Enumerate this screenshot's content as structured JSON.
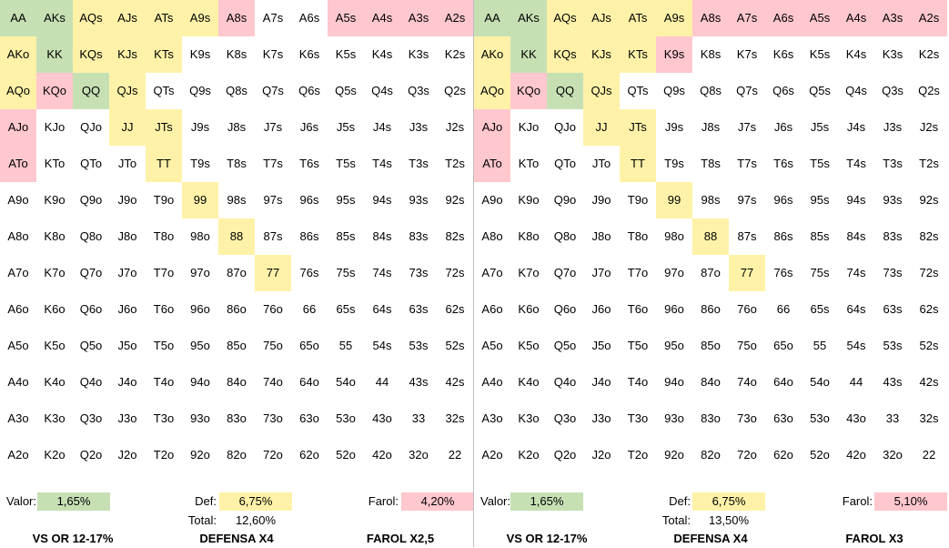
{
  "panels": [
    {
      "grid": [
        [
          "AA|g",
          "AKs|g",
          "AQs|y",
          "AJs|y",
          "ATs|y",
          "A9s|y",
          "A8s|r",
          "A7s|",
          "A6s|",
          "A5s|r",
          "A4s|r",
          "A3s|r",
          "A2s|r"
        ],
        [
          "AKo|y",
          "KK|g",
          "KQs|y",
          "KJs|y",
          "KTs|y",
          "K9s|",
          "K8s|",
          "K7s|",
          "K6s|",
          "K5s|",
          "K4s|",
          "K3s|",
          "K2s|"
        ],
        [
          "AQo|y",
          "KQo|r",
          "QQ|g",
          "QJs|y",
          "QTs|",
          "Q9s|",
          "Q8s|",
          "Q7s|",
          "Q6s|",
          "Q5s|",
          "Q4s|",
          "Q3s|",
          "Q2s|"
        ],
        [
          "AJo|r",
          "KJo|",
          "QJo|",
          "JJ|y",
          "JTs|y",
          "J9s|",
          "J8s|",
          "J7s|",
          "J6s|",
          "J5s|",
          "J4s|",
          "J3s|",
          "J2s|"
        ],
        [
          "ATo|r",
          "KTo|",
          "QTo|",
          "JTo|",
          "TT|y",
          "T9s|",
          "T8s|",
          "T7s|",
          "T6s|",
          "T5s|",
          "T4s|",
          "T3s|",
          "T2s|"
        ],
        [
          "A9o|",
          "K9o|",
          "Q9o|",
          "J9o|",
          "T9o|",
          "99|y",
          "98s|",
          "97s|",
          "96s|",
          "95s|",
          "94s|",
          "93s|",
          "92s|"
        ],
        [
          "A8o|",
          "K8o|",
          "Q8o|",
          "J8o|",
          "T8o|",
          "98o|",
          "88|y",
          "87s|",
          "86s|",
          "85s|",
          "84s|",
          "83s|",
          "82s|"
        ],
        [
          "A7o|",
          "K7o|",
          "Q7o|",
          "J7o|",
          "T7o|",
          "97o|",
          "87o|",
          "77|y",
          "76s|",
          "75s|",
          "74s|",
          "73s|",
          "72s|"
        ],
        [
          "A6o|",
          "K6o|",
          "Q6o|",
          "J6o|",
          "T6o|",
          "96o|",
          "86o|",
          "76o|",
          "66|",
          "65s|",
          "64s|",
          "63s|",
          "62s|"
        ],
        [
          "A5o|",
          "K5o|",
          "Q5o|",
          "J5o|",
          "T5o|",
          "95o|",
          "85o|",
          "75o|",
          "65o|",
          "55|",
          "54s|",
          "53s|",
          "52s|"
        ],
        [
          "A4o|",
          "K4o|",
          "Q4o|",
          "J4o|",
          "T4o|",
          "94o|",
          "84o|",
          "74o|",
          "64o|",
          "54o|",
          "44|",
          "43s|",
          "42s|"
        ],
        [
          "A3o|",
          "K3o|",
          "Q3o|",
          "J3o|",
          "T3o|",
          "93o|",
          "83o|",
          "73o|",
          "63o|",
          "53o|",
          "43o|",
          "33|",
          "32s|"
        ],
        [
          "A2o|",
          "K2o|",
          "Q2o|",
          "J2o|",
          "T2o|",
          "92o|",
          "82o|",
          "72o|",
          "62o|",
          "52o|",
          "42o|",
          "32o|",
          "22|"
        ]
      ],
      "valor_label": "Valor:",
      "valor_value": "1,65%",
      "def_label": "Def:",
      "def_value": "6,75%",
      "total_label": "Total:",
      "total_value": "12,60%",
      "farol_label": "Farol:",
      "farol_value": "4,20%",
      "footer_left": "VS OR 12-17%",
      "footer_mid": "DEFENSA X4",
      "footer_right": "FAROL X2,5"
    },
    {
      "grid": [
        [
          "AA|g",
          "AKs|g",
          "AQs|y",
          "AJs|y",
          "ATs|y",
          "A9s|y",
          "A8s|r",
          "A7s|r",
          "A6s|r",
          "A5s|r",
          "A4s|r",
          "A3s|r",
          "A2s|r"
        ],
        [
          "AKo|y",
          "KK|g",
          "KQs|y",
          "KJs|y",
          "KTs|y",
          "K9s|r",
          "K8s|",
          "K7s|",
          "K6s|",
          "K5s|",
          "K4s|",
          "K3s|",
          "K2s|"
        ],
        [
          "AQo|y",
          "KQo|r",
          "QQ|g",
          "QJs|y",
          "QTs|",
          "Q9s|",
          "Q8s|",
          "Q7s|",
          "Q6s|",
          "Q5s|",
          "Q4s|",
          "Q3s|",
          "Q2s|"
        ],
        [
          "AJo|r",
          "KJo|",
          "QJo|",
          "JJ|y",
          "JTs|y",
          "J9s|",
          "J8s|",
          "J7s|",
          "J6s|",
          "J5s|",
          "J4s|",
          "J3s|",
          "J2s|"
        ],
        [
          "ATo|r",
          "KTo|",
          "QTo|",
          "JTo|",
          "TT|y",
          "T9s|",
          "T8s|",
          "T7s|",
          "T6s|",
          "T5s|",
          "T4s|",
          "T3s|",
          "T2s|"
        ],
        [
          "A9o|",
          "K9o|",
          "Q9o|",
          "J9o|",
          "T9o|",
          "99|y",
          "98s|",
          "97s|",
          "96s|",
          "95s|",
          "94s|",
          "93s|",
          "92s|"
        ],
        [
          "A8o|",
          "K8o|",
          "Q8o|",
          "J8o|",
          "T8o|",
          "98o|",
          "88|y",
          "87s|",
          "86s|",
          "85s|",
          "84s|",
          "83s|",
          "82s|"
        ],
        [
          "A7o|",
          "K7o|",
          "Q7o|",
          "J7o|",
          "T7o|",
          "97o|",
          "87o|",
          "77|y",
          "76s|",
          "75s|",
          "74s|",
          "73s|",
          "72s|"
        ],
        [
          "A6o|",
          "K6o|",
          "Q6o|",
          "J6o|",
          "T6o|",
          "96o|",
          "86o|",
          "76o|",
          "66|",
          "65s|",
          "64s|",
          "63s|",
          "62s|"
        ],
        [
          "A5o|",
          "K5o|",
          "Q5o|",
          "J5o|",
          "T5o|",
          "95o|",
          "85o|",
          "75o|",
          "65o|",
          "55|",
          "54s|",
          "53s|",
          "52s|"
        ],
        [
          "A4o|",
          "K4o|",
          "Q4o|",
          "J4o|",
          "T4o|",
          "94o|",
          "84o|",
          "74o|",
          "64o|",
          "54o|",
          "44|",
          "43s|",
          "42s|"
        ],
        [
          "A3o|",
          "K3o|",
          "Q3o|",
          "J3o|",
          "T3o|",
          "93o|",
          "83o|",
          "73o|",
          "63o|",
          "53o|",
          "43o|",
          "33|",
          "32s|"
        ],
        [
          "A2o|",
          "K2o|",
          "Q2o|",
          "J2o|",
          "T2o|",
          "92o|",
          "82o|",
          "72o|",
          "62o|",
          "52o|",
          "42o|",
          "32o|",
          "22|"
        ]
      ],
      "valor_label": "Valor:",
      "valor_value": "1,65%",
      "def_label": "Def:",
      "def_value": "6,75%",
      "total_label": "Total:",
      "total_value": "13,50%",
      "farol_label": "Farol:",
      "farol_value": "5,10%",
      "footer_left": "VS OR 12-17%",
      "footer_mid": "DEFENSA X4",
      "footer_right": "FAROL X3"
    }
  ],
  "colors": {
    "g": "#c6e0b4",
    "y": "#fff2a8",
    "r": "#ffc7ce"
  }
}
